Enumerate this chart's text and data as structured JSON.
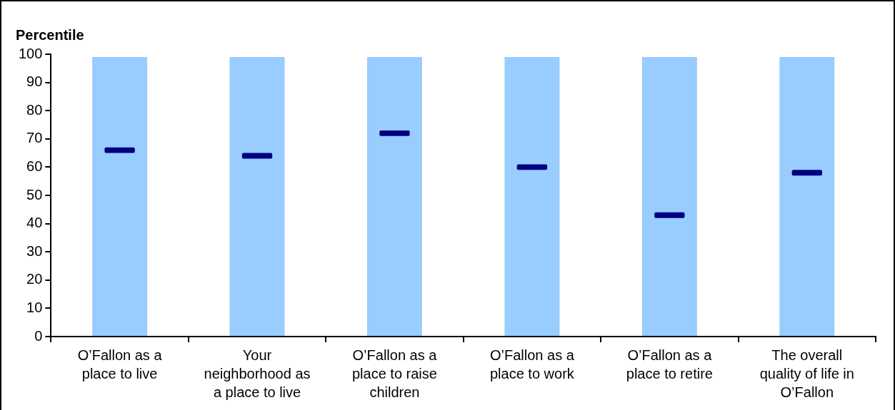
{
  "chart_data": {
    "type": "bar",
    "title": "Percentile",
    "categories": [
      "O’Fallon as a place to live",
      "Your neighborhood as a place to live",
      "O’Fallon as a place to raise children",
      "O’Fallon as a place to work",
      "O’Fallon as a place to retire",
      "The overall quality of life in O’Fallon"
    ],
    "series": [
      {
        "color": "#99ccff",
        "values": [
          99,
          99,
          99,
          99,
          99,
          99
        ]
      },
      {
        "color": "#000080",
        "values": [
          2,
          2,
          2,
          2,
          2,
          2
        ],
        "base": [
          65,
          63,
          71,
          59,
          42,
          57
        ]
      }
    ],
    "ylim": [
      0,
      100
    ],
    "yticks": [
      0,
      10,
      20,
      30,
      40,
      50,
      60,
      70,
      80,
      90,
      100
    ],
    "grid": false,
    "legend": false
  }
}
